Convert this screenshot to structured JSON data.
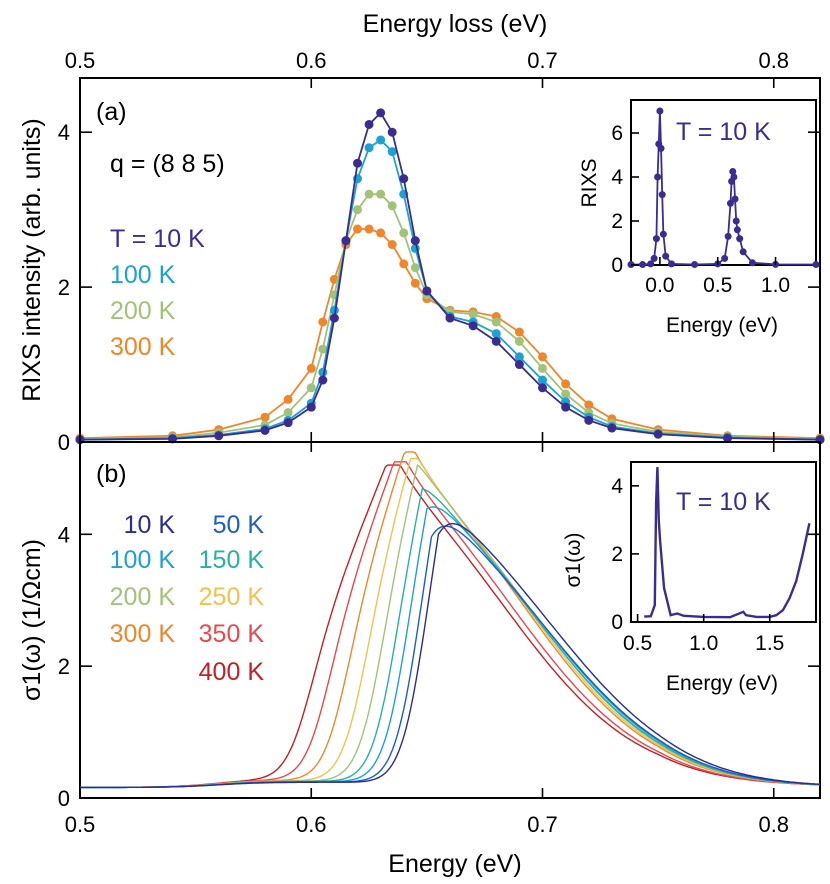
{
  "figure": {
    "top_axis_title": "Energy loss (eV)",
    "bottom_axis_title": "Energy (eV)"
  },
  "chart_data": [
    {
      "type": "line",
      "panel_label": "(a)",
      "annotation": "q = (8 8 5)",
      "ylabel": "RIXS intensity (arb. units)",
      "xlabel": "Energy loss (eV)",
      "xlim": [
        0.5,
        0.82
      ],
      "ylim": [
        0,
        4.7
      ],
      "xticks": [
        "0.5",
        "0.6",
        "0.7",
        "0.8"
      ],
      "yticks": [
        "0",
        "2",
        "4"
      ],
      "x": [
        0.5,
        0.54,
        0.56,
        0.58,
        0.59,
        0.6,
        0.605,
        0.61,
        0.615,
        0.62,
        0.625,
        0.63,
        0.635,
        0.64,
        0.645,
        0.65,
        0.66,
        0.67,
        0.68,
        0.69,
        0.7,
        0.71,
        0.72,
        0.73,
        0.75,
        0.78,
        0.82
      ],
      "series": [
        {
          "name": "T = 10 K",
          "color": "#3a2d8f",
          "values": [
            0.03,
            0.04,
            0.08,
            0.15,
            0.25,
            0.45,
            0.8,
            1.6,
            2.6,
            3.6,
            4.1,
            4.25,
            4.0,
            3.4,
            2.6,
            1.95,
            1.6,
            1.5,
            1.3,
            1.0,
            0.7,
            0.45,
            0.28,
            0.18,
            0.1,
            0.05,
            0.03
          ]
        },
        {
          "name": "100 K",
          "color": "#1da1d2",
          "values": [
            0.03,
            0.05,
            0.09,
            0.17,
            0.28,
            0.5,
            0.9,
            1.7,
            2.6,
            3.4,
            3.8,
            3.9,
            3.75,
            3.2,
            2.5,
            1.95,
            1.62,
            1.55,
            1.4,
            1.1,
            0.8,
            0.52,
            0.32,
            0.2,
            0.11,
            0.06,
            0.03
          ]
        },
        {
          "name": "200 K",
          "color": "#a2c278",
          "values": [
            0.04,
            0.06,
            0.12,
            0.22,
            0.38,
            0.7,
            1.2,
            1.9,
            2.6,
            3.0,
            3.2,
            3.2,
            3.05,
            2.7,
            2.25,
            1.9,
            1.68,
            1.65,
            1.55,
            1.3,
            0.95,
            0.62,
            0.38,
            0.24,
            0.13,
            0.07,
            0.04
          ]
        },
        {
          "name": "300 K",
          "color": "#f0862a",
          "values": [
            0.05,
            0.08,
            0.16,
            0.32,
            0.55,
            0.95,
            1.55,
            2.1,
            2.55,
            2.75,
            2.75,
            2.7,
            2.55,
            2.3,
            2.05,
            1.85,
            1.7,
            1.68,
            1.62,
            1.42,
            1.1,
            0.75,
            0.48,
            0.3,
            0.16,
            0.08,
            0.05
          ]
        }
      ],
      "inset": {
        "type": "line",
        "label": "T = 10 K",
        "ylabel": "RIXS",
        "xlabel": "Energy (eV)",
        "xlim": [
          -0.25,
          1.35
        ],
        "ylim": [
          0,
          7.5
        ],
        "xticks": [
          "0.0",
          "0.5",
          "1.0"
        ],
        "yticks": [
          "0",
          "2",
          "4",
          "6"
        ],
        "color": "#3a2d8f",
        "x": [
          -0.25,
          -0.15,
          -0.08,
          -0.05,
          -0.03,
          -0.02,
          -0.01,
          0.0,
          0.01,
          0.02,
          0.03,
          0.05,
          0.1,
          0.3,
          0.5,
          0.56,
          0.59,
          0.61,
          0.62,
          0.63,
          0.64,
          0.65,
          0.66,
          0.67,
          0.69,
          0.72,
          0.8,
          1.0,
          1.35
        ],
        "values": [
          0.02,
          0.02,
          0.05,
          0.3,
          1.2,
          4.0,
          5.5,
          7.0,
          5.3,
          3.2,
          1.4,
          0.4,
          0.05,
          0.02,
          0.05,
          0.3,
          1.3,
          2.8,
          3.8,
          4.25,
          4.0,
          3.0,
          2.0,
          1.6,
          1.2,
          0.6,
          0.1,
          0.03,
          0.02
        ]
      }
    },
    {
      "type": "line",
      "panel_label": "(b)",
      "ylabel": "σ1(ω) (1/Ωcm)",
      "xlabel": "Energy (eV)",
      "xlim": [
        0.5,
        0.82
      ],
      "ylim": [
        0,
        5.4
      ],
      "xticks": [
        "0.5",
        "0.6",
        "0.7",
        "0.8"
      ],
      "yticks": [
        "0",
        "2",
        "4"
      ],
      "series": [
        {
          "name": "10 K",
          "color": "#2b2c8f",
          "onset": 0.646,
          "peak": 0.655,
          "peak_value": 4.6,
          "tail": 0.16
        },
        {
          "name": "50 K",
          "color": "#1a5fc7",
          "onset": 0.643,
          "peak": 0.652,
          "peak_value": 4.55,
          "tail": 0.17
        },
        {
          "name": "100 K",
          "color": "#1da1d2",
          "onset": 0.638,
          "peak": 0.65,
          "peak_value": 4.7,
          "tail": 0.18
        },
        {
          "name": "150 K",
          "color": "#28b0a0",
          "onset": 0.633,
          "peak": 0.648,
          "peak_value": 4.8,
          "tail": 0.19
        },
        {
          "name": "200 K",
          "color": "#a2c278",
          "onset": 0.627,
          "peak": 0.646,
          "peak_value": 5.0,
          "tail": 0.2
        },
        {
          "name": "250 K",
          "color": "#f2c14e",
          "onset": 0.62,
          "peak": 0.644,
          "peak_value": 5.1,
          "tail": 0.21
        },
        {
          "name": "300 K",
          "color": "#f0862a",
          "onset": 0.612,
          "peak": 0.642,
          "peak_value": 5.2,
          "tail": 0.22
        },
        {
          "name": "350 K",
          "color": "#e8484f",
          "onset": 0.604,
          "peak": 0.638,
          "peak_value": 5.05,
          "tail": 0.24
        },
        {
          "name": "400 K",
          "color": "#c41f25",
          "onset": 0.596,
          "peak": 0.635,
          "peak_value": 5.0,
          "tail": 0.26
        }
      ],
      "inset": {
        "type": "line",
        "label": "T = 10 K",
        "ylabel": "σ1(ω)",
        "xlabel": "Energy (eV)",
        "xlim": [
          0.45,
          1.85
        ],
        "ylim": [
          0,
          4.7
        ],
        "xticks": [
          "0.5",
          "1.0",
          "1.5"
        ],
        "yticks": [
          "0",
          "2",
          "4"
        ],
        "color": "#3a2d8f",
        "x": [
          0.55,
          0.6,
          0.63,
          0.64,
          0.65,
          0.66,
          0.67,
          0.7,
          0.75,
          0.8,
          0.85,
          1.0,
          1.2,
          1.3,
          1.32,
          1.4,
          1.5,
          1.55,
          1.6,
          1.65,
          1.7,
          1.75,
          1.8
        ],
        "values": [
          0.16,
          0.17,
          0.5,
          3.5,
          4.55,
          3.0,
          2.4,
          1.0,
          0.2,
          0.25,
          0.18,
          0.15,
          0.14,
          0.3,
          0.2,
          0.15,
          0.15,
          0.2,
          0.35,
          0.7,
          1.2,
          2.0,
          2.9
        ]
      }
    }
  ]
}
